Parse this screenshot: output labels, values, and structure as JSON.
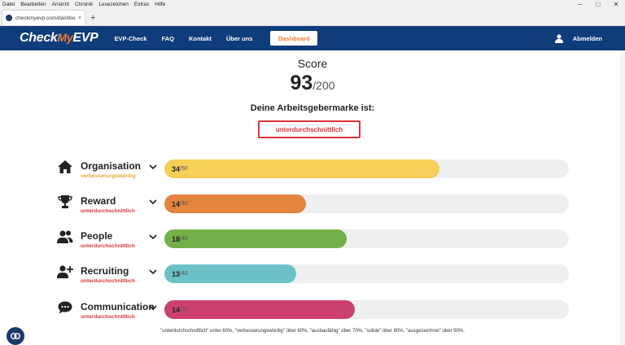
{
  "browser": {
    "menu": [
      {
        "label": "Datei"
      },
      {
        "label": "Bearbeiten"
      },
      {
        "label": "Ansicht"
      },
      {
        "label": "Chronik"
      },
      {
        "label": "Lesezeichen"
      },
      {
        "label": "Extras"
      },
      {
        "label": "Hilfe"
      }
    ],
    "tab_title": "checkmyevp.com/dashboard/...",
    "tab_close": "×",
    "new_tab": "+",
    "window_controls": {
      "minimize": "−",
      "maximize": "□",
      "close": "✕"
    }
  },
  "nav": {
    "logo_part1": "Check",
    "logo_part2": "My",
    "logo_part3": "EVP",
    "links": [
      "EVP-Check",
      "FAQ",
      "Kontakt",
      "Über uns"
    ],
    "active": "Dashboard",
    "logout": "Abmelden"
  },
  "score": {
    "title": "Score",
    "value": "93",
    "max": "/200",
    "brand_label": "Deine Arbeitsgebermarke ist:",
    "brand_result": "unterdurchschnittlich"
  },
  "categories": [
    {
      "name": "Organisation",
      "status": "verbesserungswürdig",
      "status_color": "#e8a634",
      "value": "34",
      "max": "/50",
      "fraction": 0.68,
      "bar_color": "#f5cf57",
      "icon": "house-icon"
    },
    {
      "name": "Reward",
      "status": "unterdurchschnittlich",
      "status_color": "#d9343a",
      "value": "14",
      "max": "/40",
      "fraction": 0.35,
      "bar_color": "#e4843f",
      "icon": "trophy-icon"
    },
    {
      "name": "People",
      "status": "unterdurchschnittlich",
      "status_color": "#d9343a",
      "value": "18",
      "max": "/40",
      "fraction": 0.45,
      "bar_color": "#74b04a",
      "icon": "people-icon"
    },
    {
      "name": "Recruiting",
      "status": "unterdurchschnittlich",
      "status_color": "#d9343a",
      "value": "13",
      "max": "/40",
      "fraction": 0.325,
      "bar_color": "#6cc1c7",
      "icon": "add-user-icon"
    },
    {
      "name": "Communication",
      "status": "unterdurchschnittlich",
      "status_color": "#d9343a",
      "value": "14",
      "max": "/30",
      "fraction": 0.47,
      "bar_color": "#cc4070",
      "icon": "chat-bubble-icon"
    }
  ],
  "footnote": "\"unterdurchschnittlich\" unter 60%, \"verbesserungswürdig\" über 60%, \"ausbaufähig\" über 70%, \"solide\" über 80%, \"ausgezeichnet\" über 90%."
}
